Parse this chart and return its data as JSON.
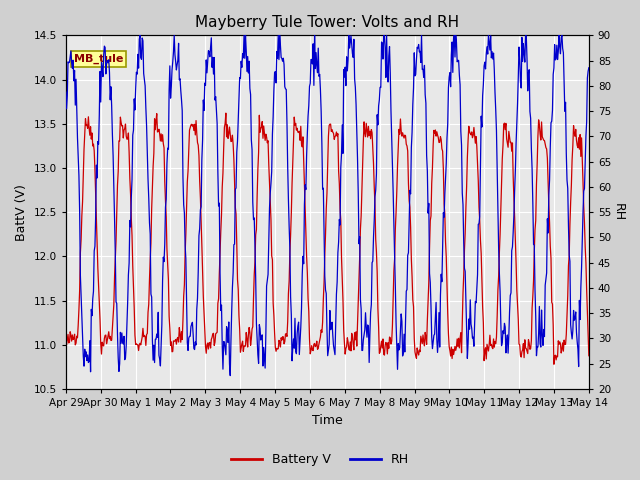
{
  "title": "Mayberry Tule Tower: Volts and RH",
  "xlabel": "Time",
  "ylabel_left": "BattV (V)",
  "ylabel_right": "RH",
  "station_label": "MB_tule",
  "x_tick_labels": [
    "Apr 29",
    "Apr 30",
    "May 1",
    "May 2",
    "May 3",
    "May 4",
    "May 5",
    "May 6",
    "May 7",
    "May 8",
    "May 9",
    "May 10",
    "May 11",
    "May 12",
    "May 13",
    "May 14"
  ],
  "ylim_left": [
    10.5,
    14.5
  ],
  "ylim_right": [
    20,
    90
  ],
  "yticks_left": [
    10.5,
    11.0,
    11.5,
    12.0,
    12.5,
    13.0,
    13.5,
    14.0,
    14.5
  ],
  "yticks_right": [
    20,
    25,
    30,
    35,
    40,
    45,
    50,
    55,
    60,
    65,
    70,
    75,
    80,
    85,
    90
  ],
  "color_battv": "#cc0000",
  "color_rh": "#0000cc",
  "fig_facecolor": "#d0d0d0",
  "plot_facecolor": "#e8e8e8",
  "legend_battv": "Battery V",
  "legend_rh": "RH",
  "title_fontsize": 11,
  "axis_label_fontsize": 9,
  "tick_fontsize": 7.5,
  "legend_fontsize": 9,
  "linewidth": 0.9
}
